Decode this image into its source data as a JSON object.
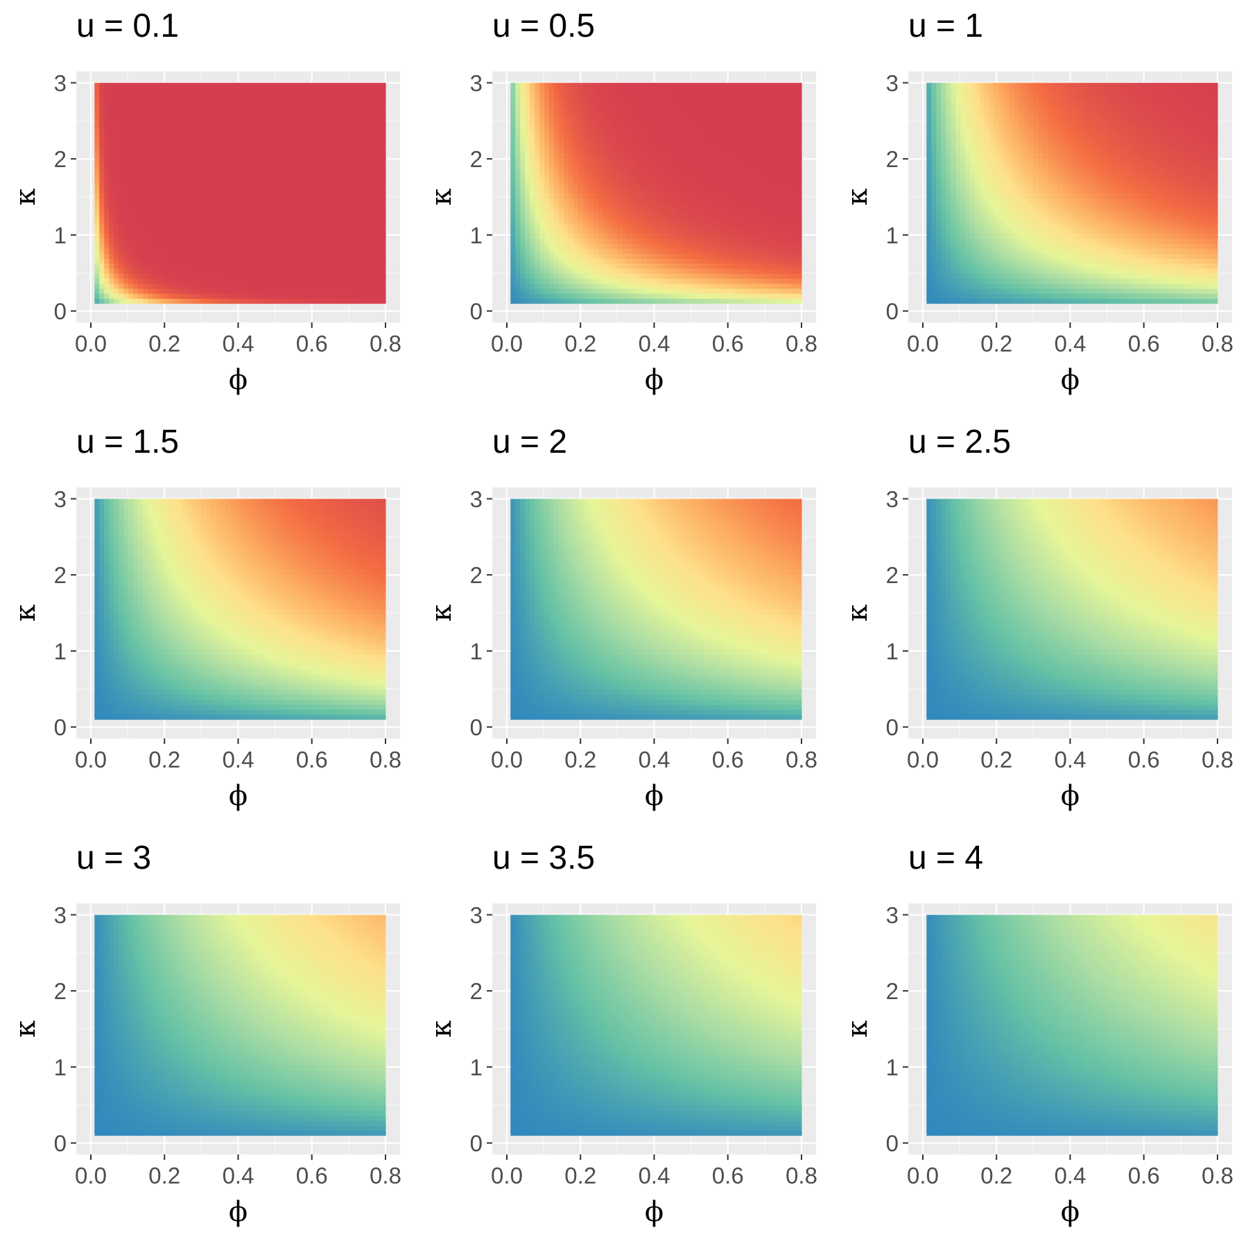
{
  "chart_data": {
    "type": "heatmap",
    "layout": "3x3 facet grid",
    "xlabel": "ϕ",
    "ylabel": "κ",
    "xlim": [
      0.0,
      0.8
    ],
    "ylim": [
      0,
      3
    ],
    "x_ticks": [
      "0.0",
      "0.2",
      "0.4",
      "0.6",
      "0.8"
    ],
    "y_ticks": [
      "0",
      "1",
      "2",
      "3"
    ],
    "x_tick_values": [
      0.0,
      0.2,
      0.4,
      0.6,
      0.8
    ],
    "y_tick_values": [
      0,
      1,
      2,
      3
    ],
    "data_range": {
      "x": [
        0.01,
        0.8
      ],
      "y": [
        0.1,
        3
      ]
    },
    "colormap": [
      "#3288bd",
      "#66c2a5",
      "#abdda4",
      "#e6f598",
      "#fee08b",
      "#fdae61",
      "#f46d43",
      "#d53e4f"
    ],
    "grid": true,
    "panels": [
      {
        "title": "u = 0.1",
        "u": 0.1
      },
      {
        "title": "u = 0.5",
        "u": 0.5
      },
      {
        "title": "u = 1",
        "u": 1
      },
      {
        "title": "u = 1.5",
        "u": 1.5
      },
      {
        "title": "u = 2",
        "u": 2
      },
      {
        "title": "u = 2.5",
        "u": 2.5
      },
      {
        "title": "u = 3",
        "u": 3
      },
      {
        "title": "u = 3.5",
        "u": 3.5
      },
      {
        "title": "u = 4",
        "u": 4
      }
    ]
  }
}
